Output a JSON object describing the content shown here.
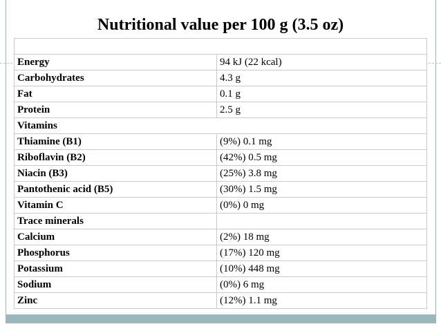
{
  "title": "Nutritional value per 100 g (3.5 oz)",
  "rows": [
    {
      "label": "Energy",
      "value": "94 kJ (22 kcal)"
    },
    {
      "label": "Carbohydrates",
      "value": "4.3 g"
    },
    {
      "label": "Fat",
      "value": "0.1 g"
    },
    {
      "label": "Protein",
      "value": "2.5 g"
    },
    {
      "label": "Vitamins",
      "value": ""
    },
    {
      "label": "Thiamine (B1)",
      "value": "(9%) 0.1 mg"
    },
    {
      "label": "Riboflavin (B2)",
      "value": "(42%) 0.5 mg"
    },
    {
      "label": "Niacin (B3)",
      "value": "(25%) 3.8 mg"
    },
    {
      "label": "Pantothenic acid (B5)",
      "value": "(30%) 1.5 mg"
    },
    {
      "label": "Vitamin C",
      "value": "(0%) 0 mg"
    },
    {
      "label": "Trace minerals",
      "value": ""
    },
    {
      "label": "Calcium",
      "value": "(2%) 18 mg"
    },
    {
      "label": "Phosphorus",
      "value": "(17%) 120 mg"
    },
    {
      "label": "Potassium",
      "value": "(10%) 448 mg"
    },
    {
      "label": "Sodium",
      "value": "(0%) 6 mg"
    },
    {
      "label": "Zinc",
      "value": "(12%) 1.1 mg"
    }
  ],
  "colors": {
    "frame": "#9ab8bc",
    "grid": "#c9c9c9"
  }
}
